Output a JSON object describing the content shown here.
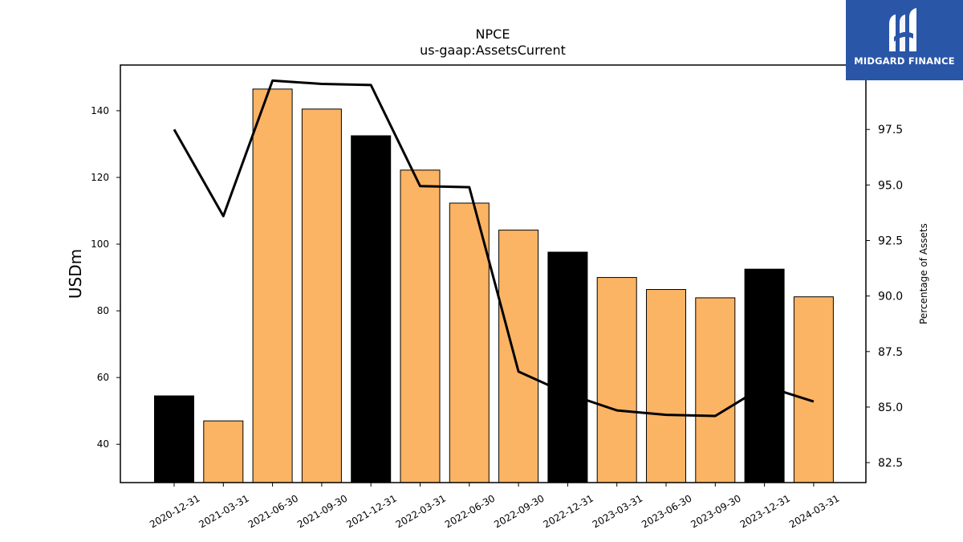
{
  "logo": {
    "brand": "MIDGARD FINANCE",
    "icon": "midgard-mark-icon",
    "background": "#2a56a8"
  },
  "chart_data": {
    "type": "bar",
    "title": "NPCE",
    "subtitle": "us-gaap:AssetsCurrent",
    "ylabel": "USDm",
    "ylabel_right": "Percentage of Assets",
    "categories": [
      "2020-12-31",
      "2021-03-31",
      "2021-06-30",
      "2021-09-30",
      "2021-12-31",
      "2022-03-31",
      "2022-06-30",
      "2022-09-30",
      "2022-12-31",
      "2023-03-31",
      "2023-06-30",
      "2023-09-30",
      "2023-12-31",
      "2024-03-31"
    ],
    "series": [
      {
        "values": [
          54.5,
          47.0,
          146.5,
          140.5,
          132.5,
          122.2,
          112.3,
          104.2,
          97.6,
          90.0,
          86.4,
          83.9,
          92.5,
          84.2
        ],
        "type": "bar",
        "axis": "left"
      },
      {
        "values": [
          97.5,
          93.6,
          99.7,
          99.55,
          99.5,
          94.95,
          94.9,
          86.6,
          85.6,
          84.85,
          84.65,
          84.6,
          85.95,
          85.25
        ],
        "type": "line",
        "axis": "right"
      }
    ],
    "bar_colors": [
      "#000000",
      "#fbb464",
      "#fbb464",
      "#fbb464",
      "#000000",
      "#fbb464",
      "#fbb464",
      "#fbb464",
      "#000000",
      "#fbb464",
      "#fbb464",
      "#fbb464",
      "#000000",
      "#fbb464"
    ],
    "line_color": "#000000",
    "ylim": [
      28.5,
      153.7
    ],
    "y_ticks": [
      40,
      60,
      80,
      100,
      120,
      140
    ],
    "ylim_right": [
      81.6,
      100.4
    ],
    "y_ticks_right": [
      "82.5",
      "85.0",
      "87.5",
      "90.0",
      "92.5",
      "95.0",
      "97.5"
    ],
    "grid": false,
    "legend": "none"
  }
}
